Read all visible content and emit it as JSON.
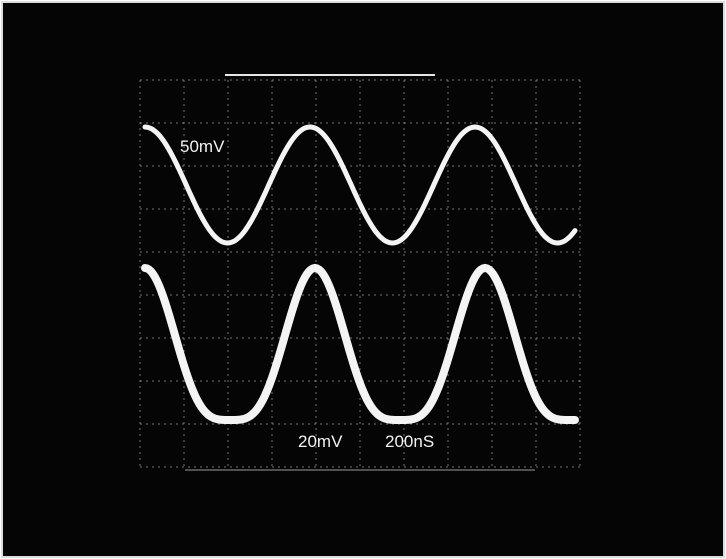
{
  "labels": {
    "channel1": "50mV",
    "channel2": "20mV",
    "timebase": "200nS"
  }
}
